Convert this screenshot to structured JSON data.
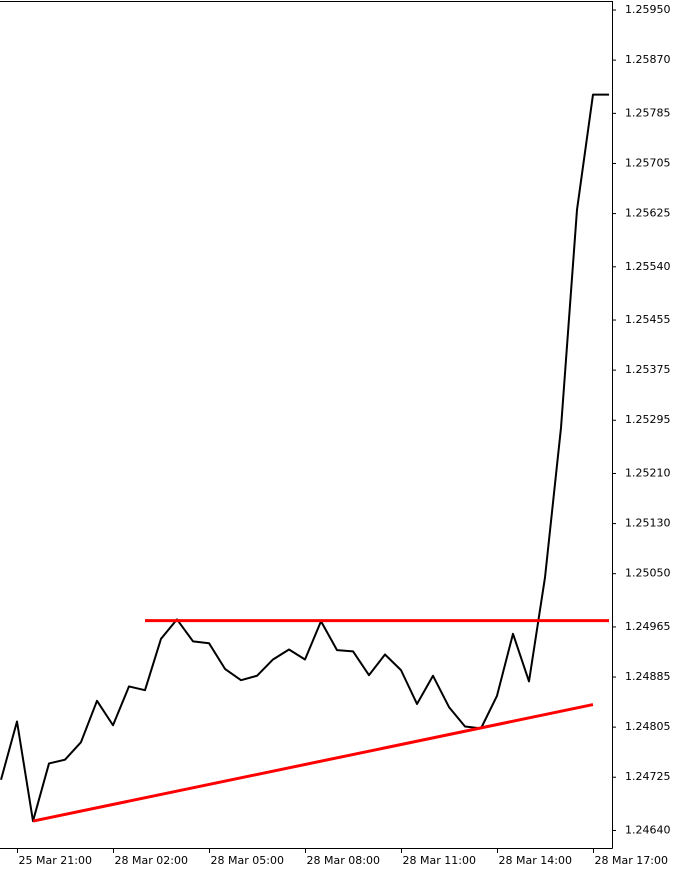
{
  "chart_data": {
    "type": "line",
    "categories": [
      null,
      "25 Mar 21:00",
      null,
      null,
      null,
      null,
      null,
      "28 Mar 02:00",
      null,
      null,
      null,
      null,
      null,
      "28 Mar 05:00",
      null,
      null,
      null,
      null,
      null,
      "28 Mar 08:00",
      null,
      null,
      null,
      null,
      null,
      "28 Mar 11:00",
      null,
      null,
      null,
      null,
      null,
      "28 Mar 14:00",
      null,
      null,
      null,
      null,
      null,
      "28 Mar 17:00",
      null
    ],
    "series": [
      {
        "color": "#000000",
        "values": [
          1.24721,
          1.24814,
          1.24655,
          1.24747,
          1.24753,
          1.24781,
          1.24847,
          1.24808,
          1.2487,
          1.24864,
          1.24946,
          1.24977,
          1.24942,
          1.24939,
          1.24898,
          1.2488,
          1.24887,
          1.24913,
          1.24929,
          1.24913,
          1.24974,
          1.24928,
          1.24926,
          1.24888,
          1.24921,
          1.24896,
          1.24842,
          1.24887,
          1.24837,
          1.24806,
          1.24803,
          1.24855,
          1.24954,
          1.24878,
          1.25044,
          1.25283,
          1.25631,
          1.25815,
          1.25815
        ]
      }
    ],
    "trendlines": [
      {
        "color": "#ff0000",
        "values": [
          1.24975,
          1.24975
        ],
        "x": [
          9,
          38
        ]
      },
      {
        "color": "#ff0000",
        "values": [
          1.24655,
          1.24841
        ],
        "x": [
          2,
          37
        ]
      }
    ],
    "ylim": [
      1.24612,
      1.25966
    ],
    "yticks": [
      {
        "value": 1.2595,
        "label": "1.25950"
      },
      {
        "value": 1.2587,
        "label": "1.25870"
      },
      1.25785,
      {
        "value": 1.25705,
        "label": "1.25705"
      },
      1.25625,
      {
        "value": 1.2554,
        "label": "1.25540"
      },
      1.25455,
      1.25375,
      1.25295,
      {
        "value": 1.2521,
        "label": "1.25210"
      },
      {
        "value": 1.2513,
        "label": "1.25130"
      },
      {
        "value": 1.2505,
        "label": "1.25050"
      },
      1.24965,
      1.24885,
      1.24805,
      1.24725,
      {
        "value": 1.2464,
        "label": "1.24640"
      }
    ]
  }
}
